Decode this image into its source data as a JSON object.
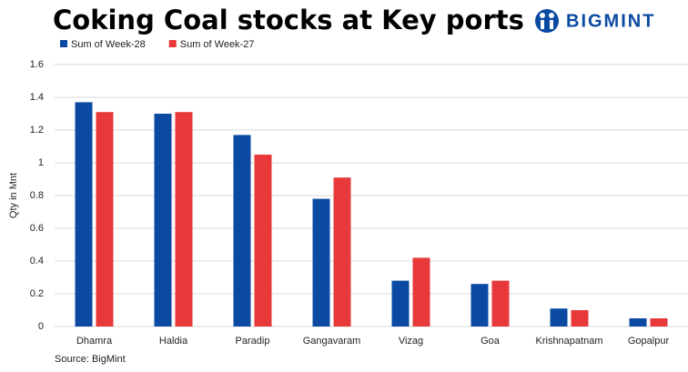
{
  "logo": "BIGMINT",
  "chart_data": {
    "type": "bar",
    "title": "Coking Coal stocks at Key ports",
    "y_label": "Qty in Mnt",
    "source": "Source: BigMint",
    "categories": [
      "Dhamra",
      "Haldia",
      "Paradip",
      "Gangavaram",
      "Vizag",
      "Goa",
      "Krishnapatnam",
      "Gopalpur"
    ],
    "series": [
      {
        "name": "Sum of Week-28",
        "color": "#0b4aa2",
        "values": [
          1.37,
          1.3,
          1.17,
          0.78,
          0.28,
          0.26,
          0.11,
          0.05
        ]
      },
      {
        "name": "Sum of Week-27",
        "color": "#e8393a",
        "values": [
          1.31,
          1.31,
          1.05,
          0.91,
          0.42,
          0.28,
          0.1,
          0.05
        ]
      }
    ],
    "ylim": [
      0,
      1.6
    ],
    "yticks": [
      0,
      0.2,
      0.4,
      0.6,
      0.8,
      1,
      1.2,
      1.4,
      1.6
    ],
    "grid": true,
    "legend": "top-left"
  }
}
